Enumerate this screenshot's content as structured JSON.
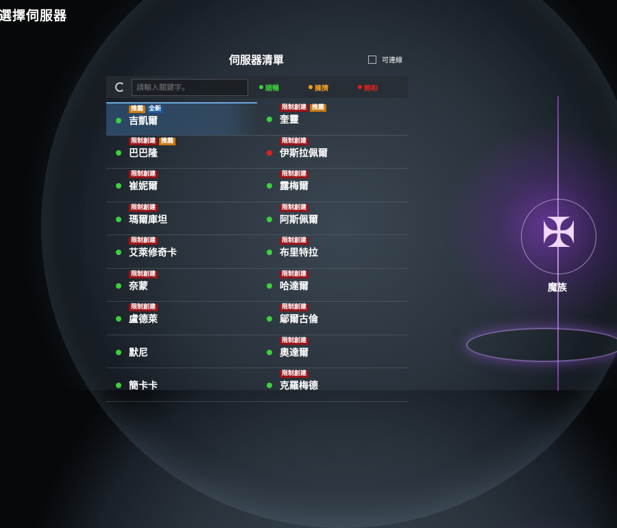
{
  "header": {
    "title": "選擇伺服器",
    "list_title": "伺服器清單",
    "online_only_label": "可連線",
    "online_only_checked": false
  },
  "toolbar": {
    "search_placeholder": "請輸入關鍵字。",
    "legend": [
      {
        "label": "順暢",
        "color": "#3fcf3f"
      },
      {
        "label": "擁擠",
        "color": "#f0a020"
      },
      {
        "label": "飽和",
        "color": "#e02020"
      }
    ]
  },
  "tag_colors": {
    "推薦": "#c77a14",
    "全新": "#1c5a9a",
    "限制創建": "#9a1418"
  },
  "servers": [
    {
      "name": "吉凱爾",
      "status": "順暢",
      "tags": [
        "推薦",
        "全新"
      ],
      "selected": true
    },
    {
      "name": "奎靈",
      "status": "順暢",
      "tags": [
        "限制創建",
        "推薦"
      ]
    },
    {
      "name": "巴巴隆",
      "status": "順暢",
      "tags": [
        "限制創建",
        "推薦"
      ]
    },
    {
      "name": "伊斯拉佩爾",
      "status": "飽和",
      "tags": [
        "限制創建"
      ]
    },
    {
      "name": "崔妮爾",
      "status": "順暢",
      "tags": [
        "限制創建"
      ]
    },
    {
      "name": "露梅爾",
      "status": "順暢",
      "tags": [
        "限制創建"
      ]
    },
    {
      "name": "瑪爾庫坦",
      "status": "順暢",
      "tags": [
        "限制創建"
      ]
    },
    {
      "name": "阿斯佩爾",
      "status": "順暢",
      "tags": [
        "限制創建"
      ]
    },
    {
      "name": "艾萊修奇卡",
      "status": "順暢",
      "tags": [
        "限制創建"
      ]
    },
    {
      "name": "布里特拉",
      "status": "順暢",
      "tags": [
        "限制創建"
      ]
    },
    {
      "name": "奈蒙",
      "status": "順暢",
      "tags": [
        "限制創建"
      ]
    },
    {
      "name": "哈達爾",
      "status": "順暢",
      "tags": [
        "限制創建"
      ]
    },
    {
      "name": "盧德萊",
      "status": "順暢",
      "tags": [
        "限制創建"
      ]
    },
    {
      "name": "鄔爾古倫",
      "status": "順暢",
      "tags": [
        "限制創建"
      ]
    },
    {
      "name": "默尼",
      "status": "順暢",
      "tags": []
    },
    {
      "name": "奧達爾",
      "status": "順暢",
      "tags": [
        "限制創建"
      ]
    },
    {
      "name": "簡卡卡",
      "status": "順暢",
      "tags": []
    },
    {
      "name": "克羅梅德",
      "status": "順暢",
      "tags": [
        "限制創建"
      ]
    }
  ],
  "race": {
    "name": "魔族",
    "icon": "asmodian-emblem-icon"
  }
}
